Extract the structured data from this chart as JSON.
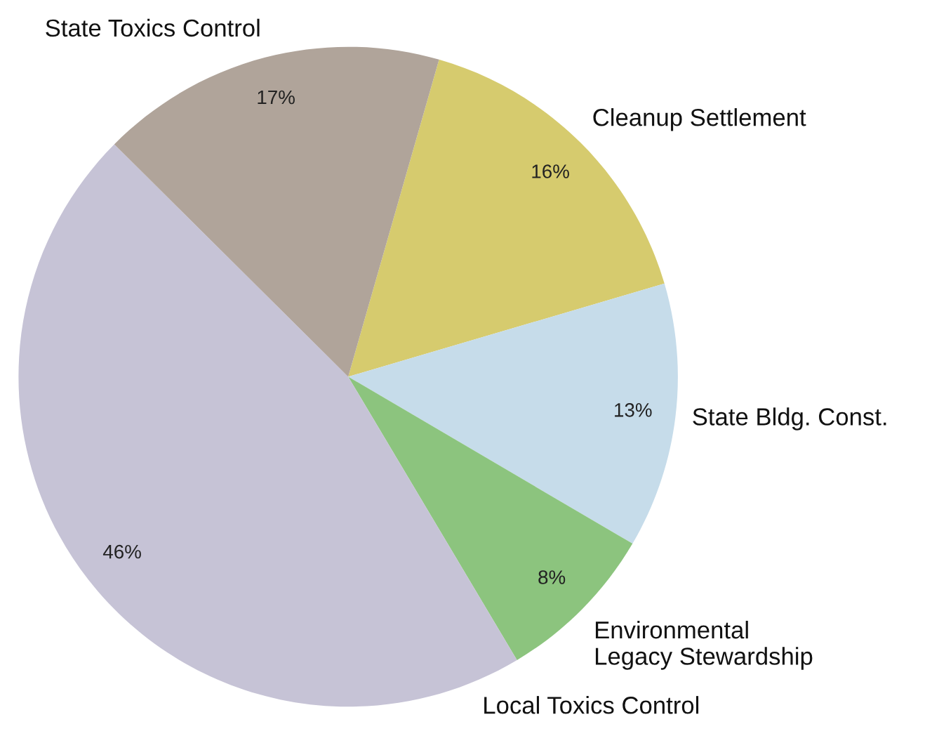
{
  "chart_data": {
    "type": "pie",
    "categories": [
      "Cleanup Settlement",
      "State Bldg. Const.",
      "Environmental\nLegacy Stewardship",
      "Local Toxics Control",
      "State Toxics Control"
    ],
    "values": [
      16,
      13,
      8,
      46,
      17
    ],
    "value_labels": [
      "16%",
      "13%",
      "8%",
      "46%",
      "17%"
    ],
    "colors": [
      "#d6cb6e",
      "#c6dcea",
      "#8cc47e",
      "#c6c3d6",
      "#b0a49a"
    ],
    "legend": false
  }
}
